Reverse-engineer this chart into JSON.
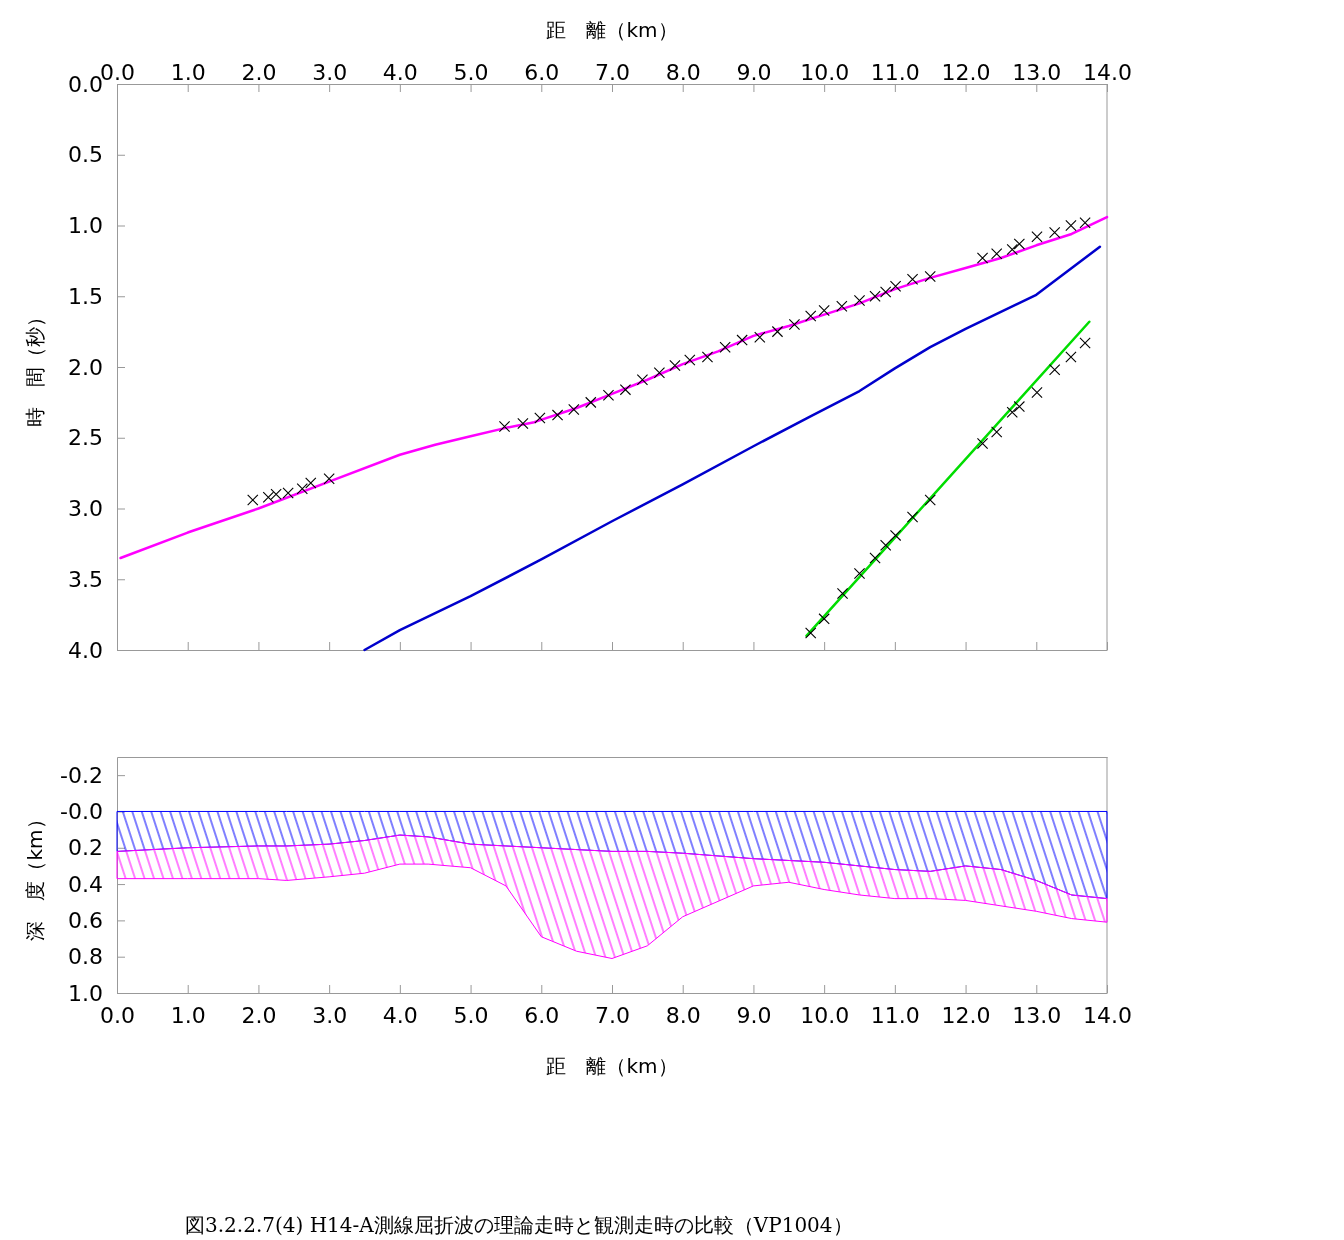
{
  "chart_data": [
    {
      "type": "line",
      "xlabel": "距　離（km）",
      "ylabel": "時　間（秒）",
      "xlim": [
        0,
        14
      ],
      "xticks": [
        {
          "value": 0,
          "label": "0.0"
        },
        {
          "value": 1,
          "label": "1.0"
        },
        {
          "value": 2,
          "label": "2.0"
        },
        {
          "value": 3,
          "label": "3.0"
        },
        {
          "value": 4,
          "label": "4.0"
        },
        {
          "value": 5,
          "label": "5.0"
        },
        {
          "value": 6,
          "label": "6.0"
        },
        {
          "value": 7,
          "label": "7.0"
        },
        {
          "value": 8,
          "label": "8.0"
        },
        {
          "value": 9,
          "label": "9.0"
        },
        {
          "value": 10,
          "label": "10.0"
        },
        {
          "value": 11,
          "label": "11.0"
        },
        {
          "value": 12,
          "label": "12.0"
        },
        {
          "value": 13,
          "label": "13.0"
        },
        {
          "value": 14,
          "label": "14.0"
        }
      ],
      "ylim": [
        4,
        0
      ],
      "yticks": [
        {
          "value": 0,
          "label": "0.0"
        },
        {
          "value": 0.5,
          "label": "0.5"
        },
        {
          "value": 1,
          "label": "1.0"
        },
        {
          "value": 1.5,
          "label": "1.5"
        },
        {
          "value": 2,
          "label": "2.0"
        },
        {
          "value": 2.5,
          "label": "2.5"
        },
        {
          "value": 3,
          "label": "3.0"
        },
        {
          "value": 3.5,
          "label": "3.5"
        },
        {
          "value": 4,
          "label": "4.0"
        }
      ],
      "series": [
        {
          "color": "#ff00ff",
          "x": [
            0.05,
            1,
            2,
            3,
            4,
            4.5,
            5,
            5.5,
            5.9,
            6.5,
            7,
            7.5,
            8,
            8.5,
            9,
            9.5,
            10,
            10.5,
            11,
            11.5,
            12,
            12.5,
            13,
            13.5,
            14
          ],
          "values": [
            3.35,
            3.17,
            3.0,
            2.81,
            2.62,
            2.55,
            2.49,
            2.43,
            2.39,
            2.29,
            2.19,
            2.09,
            1.98,
            1.89,
            1.78,
            1.71,
            1.63,
            1.55,
            1.45,
            1.37,
            1.3,
            1.23,
            1.14,
            1.06,
            0.94
          ]
        },
        {
          "color": "#0000cc",
          "x": [
            3.5,
            4,
            5,
            6,
            7,
            8,
            9,
            9.8,
            10.5,
            11,
            11.5,
            12,
            13,
            13.9
          ],
          "values": [
            4.0,
            3.86,
            3.62,
            3.36,
            3.09,
            2.83,
            2.56,
            2.35,
            2.17,
            2.01,
            1.86,
            1.73,
            1.49,
            1.15
          ]
        },
        {
          "color": "#00dd00",
          "x": [
            9.75,
            13.75
          ],
          "values": [
            3.9,
            1.68
          ]
        },
        {
          "type": "scatter",
          "marker": "cross",
          "color": "#000000",
          "x": [
            1.92,
            2.14,
            2.25,
            2.42,
            2.62,
            2.74,
            3.0,
            5.48,
            5.74,
            5.98,
            6.23,
            6.46,
            6.7,
            6.95,
            7.19,
            7.43,
            7.67,
            7.89,
            8.1,
            8.35,
            8.6,
            8.84,
            9.09,
            9.34,
            9.58,
            9.81,
            10.0,
            10.25,
            10.5,
            10.72,
            10.87,
            11.01,
            11.25,
            11.5,
            12.24,
            12.44,
            12.66,
            12.76,
            13.01,
            13.26,
            13.49,
            13.69
          ],
          "values": [
            2.94,
            2.92,
            2.9,
            2.89,
            2.86,
            2.82,
            2.79,
            2.42,
            2.4,
            2.36,
            2.34,
            2.3,
            2.25,
            2.2,
            2.16,
            2.09,
            2.04,
            1.99,
            1.95,
            1.93,
            1.86,
            1.81,
            1.79,
            1.75,
            1.7,
            1.64,
            1.6,
            1.57,
            1.53,
            1.5,
            1.47,
            1.43,
            1.38,
            1.36,
            1.23,
            1.2,
            1.17,
            1.13,
            1.08,
            1.05,
            1.0,
            0.98
          ]
        },
        {
          "type": "scatter",
          "marker": "cross",
          "color": "#000000",
          "x": [
            9.81,
            10.0,
            10.26,
            10.5,
            10.72,
            10.87,
            11.01,
            11.25,
            11.5,
            12.24,
            12.44,
            12.66,
            12.76,
            13.01,
            13.26,
            13.49,
            13.69
          ],
          "values": [
            3.88,
            3.78,
            3.6,
            3.46,
            3.35,
            3.26,
            3.19,
            3.06,
            2.94,
            2.54,
            2.46,
            2.32,
            2.28,
            2.18,
            2.02,
            1.93,
            1.83
          ]
        }
      ]
    },
    {
      "type": "area",
      "stacked": true,
      "xlabel": "距　離（km）",
      "ylabel": "深　度（km）",
      "xlim": [
        0,
        14
      ],
      "xticks": [
        {
          "value": 0,
          "label": "0.0"
        },
        {
          "value": 1,
          "label": "1.0"
        },
        {
          "value": 2,
          "label": "2.0"
        },
        {
          "value": 3,
          "label": "3.0"
        },
        {
          "value": 4,
          "label": "4.0"
        },
        {
          "value": 5,
          "label": "5.0"
        },
        {
          "value": 6,
          "label": "6.0"
        },
        {
          "value": 7,
          "label": "7.0"
        },
        {
          "value": 8,
          "label": "8.0"
        },
        {
          "value": 9,
          "label": "9.0"
        },
        {
          "value": 10,
          "label": "10.0"
        },
        {
          "value": 11,
          "label": "11.0"
        },
        {
          "value": 12,
          "label": "12.0"
        },
        {
          "value": 13,
          "label": "13.0"
        },
        {
          "value": 14,
          "label": "14.0"
        }
      ],
      "ylim": [
        1,
        -0.3
      ],
      "yticks": [
        {
          "value": -0.2,
          "label": "-0.2"
        },
        {
          "value": 0,
          "label": "-0.0"
        },
        {
          "value": 0.2,
          "label": "0.2"
        },
        {
          "value": 0.4,
          "label": "0.4"
        },
        {
          "value": 0.6,
          "label": "0.6"
        },
        {
          "value": 0.8,
          "label": "0.8"
        },
        {
          "value": 1,
          "label": "1.0"
        }
      ],
      "x": [
        0,
        1,
        2,
        2.4,
        3,
        3.5,
        4,
        4.4,
        5,
        5.5,
        6,
        6.5,
        7,
        7.5,
        8,
        9,
        9.5,
        10,
        10.5,
        11,
        11.5,
        12,
        12.5,
        13,
        13.5,
        14
      ],
      "series": [
        {
          "color": "#0000ff",
          "values": [
            0.22,
            0.2,
            0.19,
            0.19,
            0.18,
            0.16,
            0.13,
            0.14,
            0.18,
            0.19,
            0.2,
            0.21,
            0.22,
            0.22,
            0.23,
            0.26,
            0.27,
            0.28,
            0.3,
            0.32,
            0.33,
            0.3,
            0.32,
            0.38,
            0.46,
            0.48
          ]
        },
        {
          "color": "#ff00ff",
          "values": [
            0.15,
            0.17,
            0.18,
            0.19,
            0.18,
            0.18,
            0.16,
            0.15,
            0.13,
            0.22,
            0.49,
            0.56,
            0.59,
            0.52,
            0.35,
            0.15,
            0.12,
            0.15,
            0.16,
            0.16,
            0.15,
            0.19,
            0.2,
            0.17,
            0.13,
            0.13
          ]
        }
      ],
      "annotations": [
        "図3.2.2.7(4)  H14-A測線屈折波の理論走時と観測走時の比較（VP1004）"
      ]
    }
  ]
}
